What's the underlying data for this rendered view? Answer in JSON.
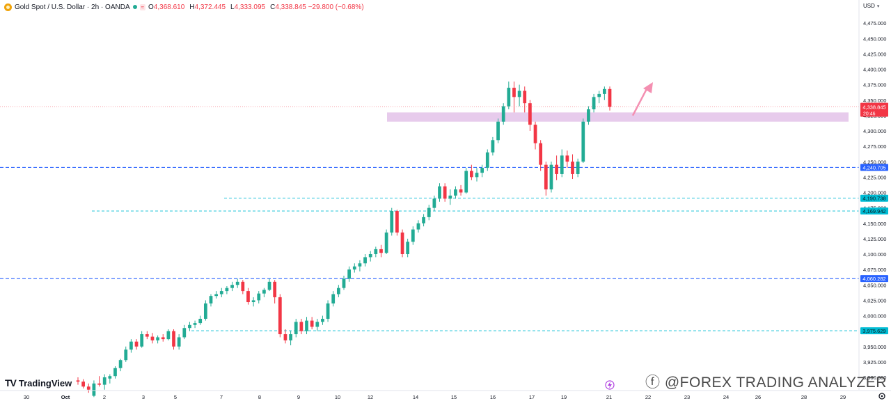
{
  "header": {
    "title": "Gold Spot / U.S. Dollar · 2h · OANDA",
    "badge": "≈",
    "ohlc": [
      {
        "k": "O",
        "v": "4,368.610"
      },
      {
        "k": "H",
        "v": "4,372.445"
      },
      {
        "k": "L",
        "v": "4,333.095"
      },
      {
        "k": "C",
        "v": "4,338.845 −29.800 (−0.68%)"
      }
    ]
  },
  "currency": "USD",
  "watermark": "ⓕ @FOREX TRADING ANALYZER",
  "brand": {
    "mark": "TV",
    "name": "TradingView"
  },
  "colors": {
    "up": "#22ab94",
    "down": "#f23645",
    "zone": "#e1bee7",
    "arrow": "#f48fb1",
    "level_blue": "#2962ff",
    "level_cyan": "#00bcd4"
  },
  "chart_data": {
    "type": "candlestick",
    "symbol": "XAUUSD",
    "timeframe": "2h",
    "ylim": [
      3900,
      4500
    ],
    "y_ticks": [
      "4,475.000",
      "4,450.000",
      "4,425.000",
      "4,400.000",
      "4,375.000",
      "4,350.000",
      "4,325.000",
      "4,300.000",
      "4,275.000",
      "4,250.000",
      "4,225.000",
      "4,200.000",
      "4,175.000",
      "4,150.000",
      "4,125.000",
      "4,100.000",
      "4,075.000",
      "4,050.000",
      "4,025.000",
      "4,000.000",
      "3,975.000",
      "3,950.000",
      "3,925.000",
      "3,900.000"
    ],
    "x_ticks": [
      "30",
      "Oct",
      "2",
      "3",
      "5",
      "7",
      "8",
      "9",
      "10",
      "12",
      "14",
      "15",
      "16",
      "17",
      "19",
      "21",
      "22",
      "23",
      "24",
      "26",
      "28",
      "29"
    ],
    "last_price": {
      "value": 4338.845,
      "label": "4,338.845",
      "timer": "20:46"
    },
    "levels": [
      {
        "value": 4240.705,
        "label": "4,240.705",
        "style": "dashed",
        "color": "blue"
      },
      {
        "value": 4190.738,
        "label": "4,190.738",
        "style": "dashed",
        "color": "cyan"
      },
      {
        "value": 4169.942,
        "label": "4,169.942",
        "style": "dashed",
        "color": "cyan"
      },
      {
        "value": 4060.282,
        "label": "4,060.282",
        "style": "dashed",
        "color": "blue"
      },
      {
        "value": 3975.629,
        "label": "3,975.629",
        "style": "dashed",
        "color": "cyan"
      }
    ],
    "zone": {
      "low": 4315,
      "high": 4330
    },
    "candles": [
      [
        3895,
        3900,
        3888,
        3893
      ],
      [
        3893,
        3897,
        3882,
        3885
      ],
      [
        3885,
        3890,
        3875,
        3880
      ],
      [
        3870,
        3895,
        3868,
        3890
      ],
      [
        3890,
        3902,
        3885,
        3888
      ],
      [
        3888,
        3905,
        3880,
        3900
      ],
      [
        3898,
        3905,
        3890,
        3902
      ],
      [
        3902,
        3918,
        3898,
        3915
      ],
      [
        3915,
        3930,
        3910,
        3928
      ],
      [
        3928,
        3950,
        3925,
        3945
      ],
      [
        3945,
        3962,
        3940,
        3958
      ],
      [
        3958,
        3962,
        3945,
        3950
      ],
      [
        3950,
        3975,
        3948,
        3970
      ],
      [
        3970,
        3975,
        3962,
        3966
      ],
      [
        3966,
        3972,
        3955,
        3960
      ],
      [
        3960,
        3968,
        3955,
        3965
      ],
      [
        3965,
        3970,
        3958,
        3962
      ],
      [
        3962,
        3978,
        3960,
        3975
      ],
      [
        3975,
        3978,
        3945,
        3950
      ],
      [
        3950,
        3970,
        3945,
        3965
      ],
      [
        3965,
        3985,
        3962,
        3980
      ],
      [
        3980,
        3990,
        3975,
        3985
      ],
      [
        3985,
        3992,
        3980,
        3988
      ],
      [
        3988,
        4000,
        3985,
        3995
      ],
      [
        3995,
        4025,
        3992,
        4020
      ],
      [
        4020,
        4035,
        4015,
        4032
      ],
      [
        4032,
        4040,
        4028,
        4035
      ],
      [
        4035,
        4045,
        4030,
        4040
      ],
      [
        4040,
        4048,
        4035,
        4045
      ],
      [
        4045,
        4055,
        4040,
        4050
      ],
      [
        4050,
        4060,
        4045,
        4055
      ],
      [
        4055,
        4058,
        4035,
        4040
      ],
      [
        4040,
        4045,
        4018,
        4022
      ],
      [
        4022,
        4030,
        4015,
        4025
      ],
      [
        4025,
        4040,
        4020,
        4036
      ],
      [
        4036,
        4045,
        4030,
        4042
      ],
      [
        4042,
        4060,
        4040,
        4055
      ],
      [
        4055,
        4058,
        4020,
        4030
      ],
      [
        4030,
        4035,
        3965,
        3970
      ],
      [
        3970,
        3978,
        3955,
        3960
      ],
      [
        3960,
        3975,
        3952,
        3970
      ],
      [
        3970,
        3995,
        3965,
        3990
      ],
      [
        3990,
        3995,
        3970,
        3975
      ],
      [
        3975,
        3998,
        3970,
        3992
      ],
      [
        3992,
        3998,
        3978,
        3982
      ],
      [
        3982,
        3995,
        3975,
        3990
      ],
      [
        3990,
        4000,
        3985,
        3995
      ],
      [
        3995,
        4025,
        3990,
        4020
      ],
      [
        4020,
        4040,
        4015,
        4035
      ],
      [
        4035,
        4050,
        4030,
        4045
      ],
      [
        4045,
        4065,
        4042,
        4060
      ],
      [
        4060,
        4080,
        4055,
        4075
      ],
      [
        4075,
        4085,
        4070,
        4080
      ],
      [
        4080,
        4090,
        4072,
        4085
      ],
      [
        4085,
        4100,
        4080,
        4095
      ],
      [
        4095,
        4105,
        4088,
        4100
      ],
      [
        4100,
        4112,
        4095,
        4108
      ],
      [
        4108,
        4115,
        4095,
        4102
      ],
      [
        4102,
        4140,
        4100,
        4135
      ],
      [
        4135,
        4175,
        4130,
        4170
      ],
      [
        4170,
        4172,
        4130,
        4135
      ],
      [
        4135,
        4140,
        4095,
        4100
      ],
      [
        4100,
        4125,
        4095,
        4120
      ],
      [
        4120,
        4145,
        4115,
        4140
      ],
      [
        4140,
        4155,
        4135,
        4150
      ],
      [
        4150,
        4165,
        4145,
        4160
      ],
      [
        4160,
        4180,
        4155,
        4175
      ],
      [
        4175,
        4195,
        4170,
        4190
      ],
      [
        4190,
        4215,
        4185,
        4210
      ],
      [
        4210,
        4215,
        4185,
        4190
      ],
      [
        4190,
        4205,
        4180,
        4195
      ],
      [
        4195,
        4210,
        4190,
        4205
      ],
      [
        4205,
        4212,
        4195,
        4200
      ],
      [
        4200,
        4240,
        4198,
        4235
      ],
      [
        4235,
        4245,
        4220,
        4225
      ],
      [
        4225,
        4240,
        4218,
        4232
      ],
      [
        4232,
        4245,
        4225,
        4240
      ],
      [
        4240,
        4270,
        4235,
        4265
      ],
      [
        4265,
        4290,
        4260,
        4285
      ],
      [
        4285,
        4320,
        4280,
        4315
      ],
      [
        4315,
        4345,
        4310,
        4340
      ],
      [
        4340,
        4380,
        4335,
        4370
      ],
      [
        4370,
        4380,
        4330,
        4355
      ],
      [
        4355,
        4375,
        4340,
        4365
      ],
      [
        4365,
        4372,
        4330,
        4345
      ],
      [
        4345,
        4350,
        4300,
        4310
      ],
      [
        4310,
        4315,
        4270,
        4280
      ],
      [
        4280,
        4285,
        4235,
        4245
      ],
      [
        4245,
        4250,
        4195,
        4205
      ],
      [
        4205,
        4250,
        4200,
        4245
      ],
      [
        4245,
        4260,
        4220,
        4230
      ],
      [
        4230,
        4270,
        4225,
        4260
      ],
      [
        4260,
        4268,
        4240,
        4250
      ],
      [
        4250,
        4262,
        4222,
        4230
      ],
      [
        4230,
        4255,
        4225,
        4250
      ],
      [
        4250,
        4320,
        4248,
        4315
      ],
      [
        4315,
        4340,
        4310,
        4335
      ],
      [
        4335,
        4360,
        4330,
        4355
      ],
      [
        4355,
        4365,
        4345,
        4360
      ],
      [
        4360,
        4372,
        4350,
        4368
      ],
      [
        4368,
        4372,
        4333,
        4339
      ]
    ]
  }
}
